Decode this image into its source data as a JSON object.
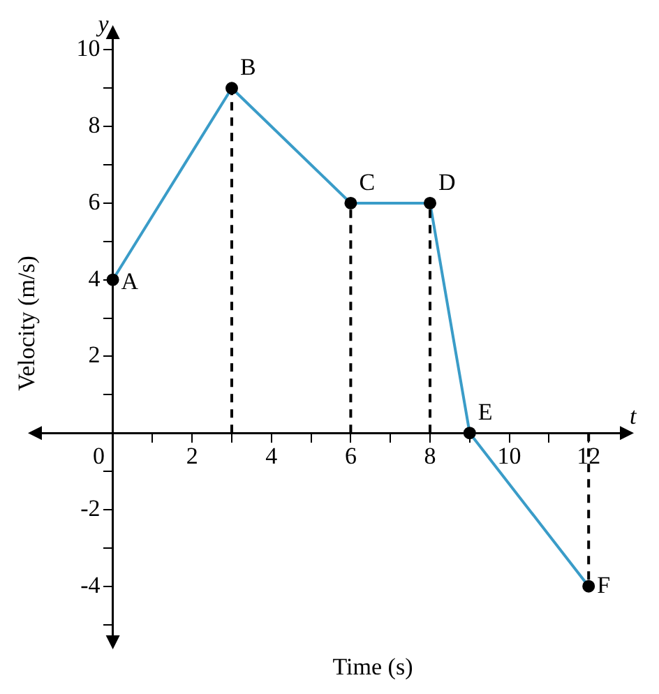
{
  "chart_data": {
    "type": "line",
    "xlabel": "Time (s)",
    "ylabel": "Velocity (m/s)",
    "x": [
      0,
      3,
      6,
      8,
      9,
      12
    ],
    "series": [
      {
        "color": "#3a9cc8",
        "values": [
          4,
          9,
          6,
          6,
          0,
          -4
        ],
        "colors": [
          "#000000",
          "#000000",
          "#000000",
          "#000000",
          "#000000",
          "#000000"
        ],
        "marker": "circle",
        "line_style": "solid"
      },
      {
        "color": "#000000",
        "x": [
          3,
          3
        ],
        "values": [
          0,
          9
        ],
        "marker": "none",
        "line_style": "dashed"
      },
      {
        "color": "#000000",
        "x": [
          6,
          6
        ],
        "values": [
          0,
          6
        ],
        "marker": "none",
        "line_style": "dashed"
      },
      {
        "color": "#000000",
        "x": [
          8,
          8
        ],
        "values": [
          0,
          6
        ],
        "marker": "none",
        "line_style": "dashed"
      },
      {
        "color": "#000000",
        "x": [
          12,
          12
        ],
        "values": [
          0,
          -4
        ],
        "marker": "none",
        "line_style": "dashed"
      }
    ],
    "annotations": [
      {
        "text": "A",
        "x": 0,
        "y": 4
      },
      {
        "text": "B",
        "x": 3,
        "y": 9
      },
      {
        "text": "C",
        "x": 6,
        "y": 6
      },
      {
        "text": "D",
        "x": 8,
        "y": 6
      },
      {
        "text": "E",
        "x": 9,
        "y": 0
      },
      {
        "text": "F",
        "x": 12,
        "y": -4
      },
      "y",
      "t"
    ],
    "xlim": [
      -2,
      13
    ],
    "ylim": [
      -5.5,
      10.5
    ],
    "xticks": [
      0,
      {
        "value": 1,
        "label": null
      },
      2,
      {
        "value": 3,
        "label": null
      },
      4,
      {
        "value": 5,
        "label": null
      },
      6,
      {
        "value": 7,
        "label": null
      },
      8,
      {
        "value": 9,
        "label": null
      },
      10,
      {
        "value": 11,
        "label": null
      },
      12
    ],
    "yticks": [
      {
        "value": -5,
        "label": null
      },
      -4,
      {
        "value": -3,
        "label": null
      },
      -2,
      {
        "value": -1,
        "label": null
      },
      {
        "value": 1,
        "label": null
      },
      2,
      {
        "value": 3,
        "label": null
      },
      4,
      {
        "value": 5,
        "label": null
      },
      6,
      {
        "value": 7,
        "label": null
      },
      8,
      {
        "value": 9,
        "label": null
      },
      10
    ],
    "grid": false,
    "legend": false
  }
}
